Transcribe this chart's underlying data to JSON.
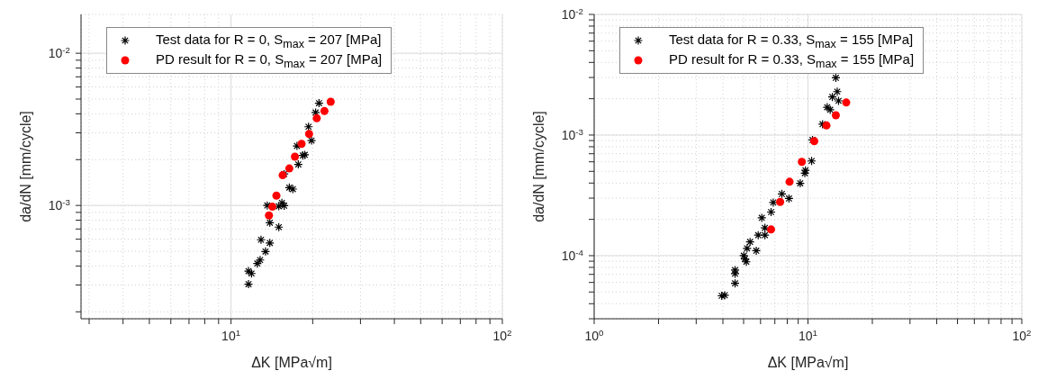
{
  "chart_data": [
    {
      "type": "scatter",
      "xlabel": "ΔK [MPa√m]",
      "ylabel": "da/dN [mm/cycle]",
      "log": "xy",
      "grid": true,
      "legend": "top",
      "xlim": [
        2.8,
        100
      ],
      "xticks": [
        {
          "value": 3,
          "label": null
        },
        {
          "value": 4,
          "label": null
        },
        {
          "value": 5,
          "label": null
        },
        {
          "value": 6,
          "label": null
        },
        {
          "value": 7,
          "label": null
        },
        {
          "value": 8,
          "label": null
        },
        {
          "value": 9,
          "label": null
        },
        {
          "value": 10,
          "label": "10$^{1}$"
        },
        {
          "value": 20,
          "label": null
        },
        {
          "value": 30,
          "label": null
        },
        {
          "value": 40,
          "label": null
        },
        {
          "value": 50,
          "label": null
        },
        {
          "value": 60,
          "label": null
        },
        {
          "value": 70,
          "label": null
        },
        {
          "value": 80,
          "label": null
        },
        {
          "value": 90,
          "label": null
        },
        {
          "value": 100,
          "label": "10$^{2}$"
        }
      ],
      "ylim": [
        0.00018,
        0.018
      ],
      "yticks": [
        {
          "value": 0.0002,
          "label": null
        },
        {
          "value": 0.0003,
          "label": null
        },
        {
          "value": 0.0004,
          "label": null
        },
        {
          "value": 0.0005,
          "label": null
        },
        {
          "value": 0.0006,
          "label": null
        },
        {
          "value": 0.0007,
          "label": null
        },
        {
          "value": 0.0008,
          "label": null
        },
        {
          "value": 0.0009,
          "label": null
        },
        {
          "value": 0.001,
          "label": "10$^{-3}$"
        },
        {
          "value": 0.002,
          "label": null
        },
        {
          "value": 0.003,
          "label": null
        },
        {
          "value": 0.004,
          "label": null
        },
        {
          "value": 0.005,
          "label": null
        },
        {
          "value": 0.006,
          "label": null
        },
        {
          "value": 0.007,
          "label": null
        },
        {
          "value": 0.008,
          "label": null
        },
        {
          "value": 0.009,
          "label": null
        },
        {
          "value": 0.01,
          "label": "10$^{-2}$"
        }
      ],
      "series": [
        {
          "name": "Test data for R = 0, S$_{max}$ = 207 [MPa]",
          "color": "#000000",
          "marker": "cross",
          "x": [
            21.1,
            20.5,
            19.3,
            19.8,
            17.5,
            18.7,
            18.4,
            17.7,
            15.7,
            16.4,
            16.9,
            13.6,
            15.4,
            15.7,
            15.0,
            13.9,
            15.0,
            12.9,
            13.9,
            13.4,
            12.8,
            12.5,
            11.6,
            11.9,
            11.6
          ],
          "values": [
            0.0047,
            0.00408,
            0.00329,
            0.00267,
            0.00246,
            0.00215,
            0.00213,
            0.00186,
            0.00161,
            0.00131,
            0.00128,
            0.001,
            0.00104,
            0.000996,
            0.000987,
            0.00077,
            0.00072,
            0.000595,
            0.000567,
            0.000498,
            0.000438,
            0.000415,
            0.00037,
            0.000357,
            0.000304
          ]
        },
        {
          "name": "PD result for R = 0, S$_{max}$ = 207 [MPa]",
          "color": "#ff0000",
          "marker": "circle",
          "x": [
            13.8,
            14.2,
            14.7,
            15.5,
            16.4,
            17.2,
            18.2,
            19.4,
            20.7,
            22.1,
            23.3
          ],
          "values": [
            0.00086,
            0.00098,
            0.00116,
            0.00158,
            0.00175,
            0.00209,
            0.00254,
            0.00295,
            0.00374,
            0.00417,
            0.0048
          ]
        }
      ]
    },
    {
      "type": "scatter",
      "xlabel": "ΔK [MPa√m]",
      "ylabel": "da/dN [mm/cycle]",
      "log": "xy",
      "grid": true,
      "legend": "top",
      "xlim": [
        1,
        100
      ],
      "xticks": [
        {
          "value": 1,
          "label": "10$^{0}$"
        },
        {
          "value": 2,
          "label": null
        },
        {
          "value": 3,
          "label": null
        },
        {
          "value": 4,
          "label": null
        },
        {
          "value": 5,
          "label": null
        },
        {
          "value": 6,
          "label": null
        },
        {
          "value": 7,
          "label": null
        },
        {
          "value": 8,
          "label": null
        },
        {
          "value": 9,
          "label": null
        },
        {
          "value": 10,
          "label": "10$^{1}$"
        },
        {
          "value": 20,
          "label": null
        },
        {
          "value": 30,
          "label": null
        },
        {
          "value": 40,
          "label": null
        },
        {
          "value": 50,
          "label": null
        },
        {
          "value": 60,
          "label": null
        },
        {
          "value": 70,
          "label": null
        },
        {
          "value": 80,
          "label": null
        },
        {
          "value": 90,
          "label": null
        },
        {
          "value": 100,
          "label": "10$^{2}$"
        }
      ],
      "ylim": [
        3e-05,
        0.01
      ],
      "yticks": [
        {
          "value": 3e-05,
          "label": null
        },
        {
          "value": 4e-05,
          "label": null
        },
        {
          "value": 5e-05,
          "label": null
        },
        {
          "value": 6e-05,
          "label": null
        },
        {
          "value": 7e-05,
          "label": null
        },
        {
          "value": 8e-05,
          "label": null
        },
        {
          "value": 9e-05,
          "label": null
        },
        {
          "value": 0.0001,
          "label": "10$^{-4}$"
        },
        {
          "value": 0.0002,
          "label": null
        },
        {
          "value": 0.0003,
          "label": null
        },
        {
          "value": 0.0004,
          "label": null
        },
        {
          "value": 0.0005,
          "label": null
        },
        {
          "value": 0.0006,
          "label": null
        },
        {
          "value": 0.0007,
          "label": null
        },
        {
          "value": 0.0008,
          "label": null
        },
        {
          "value": 0.0009,
          "label": null
        },
        {
          "value": 0.001,
          "label": "10$^{-3}$"
        },
        {
          "value": 0.002,
          "label": null
        },
        {
          "value": 0.003,
          "label": null
        },
        {
          "value": 0.004,
          "label": null
        },
        {
          "value": 0.005,
          "label": null
        },
        {
          "value": 0.006,
          "label": null
        },
        {
          "value": 0.007,
          "label": null
        },
        {
          "value": 0.008,
          "label": null
        },
        {
          "value": 0.009,
          "label": null
        },
        {
          "value": 0.01,
          "label": "10$^{-2}$"
        }
      ],
      "series": [
        {
          "name": "Test data for R = 0.33, S$_{max}$ = 155 [MPa]",
          "color": "#000000",
          "marker": "cross",
          "x": [
            13.5,
            13.7,
            13.0,
            13.9,
            12.3,
            12.7,
            11.7,
            10.5,
            10.4,
            9.73,
            9.67,
            9.2,
            8.15,
            7.55,
            6.88,
            6.72,
            6.08,
            6.29,
            6.29,
            5.85,
            5.36,
            5.19,
            5.73,
            5.01,
            5.07,
            5.15,
            4.56,
            4.56,
            4.56,
            3.95,
            4.08
          ],
          "values": [
            0.00298,
            0.00229,
            0.00207,
            0.00192,
            0.0017,
            0.00162,
            0.00123,
            0.00091,
            0.00061,
            0.00051,
            0.000483,
            0.000398,
            0.000298,
            0.000325,
            0.000276,
            0.00023,
            0.000206,
            0.00017,
            0.000148,
            0.000148,
            0.00013,
            0.000115,
            0.00011,
            0.0001,
            9.4e-05,
            8.9e-05,
            7.6e-05,
            7.1e-05,
            5.9e-05,
            4.65e-05,
            4.7e-05
          ]
        },
        {
          "name": "PD result for R = 0.33, S$_{max}$ = 155 [MPa]",
          "color": "#ff0000",
          "marker": "circle",
          "x": [
            6.72,
            7.41,
            8.2,
            9.36,
            10.7,
            12.2,
            13.5,
            15.1
          ],
          "values": [
            0.000165,
            0.000279,
            0.00041,
            0.0006,
            0.00089,
            0.0012,
            0.00146,
            0.00186
          ]
        }
      ]
    }
  ]
}
